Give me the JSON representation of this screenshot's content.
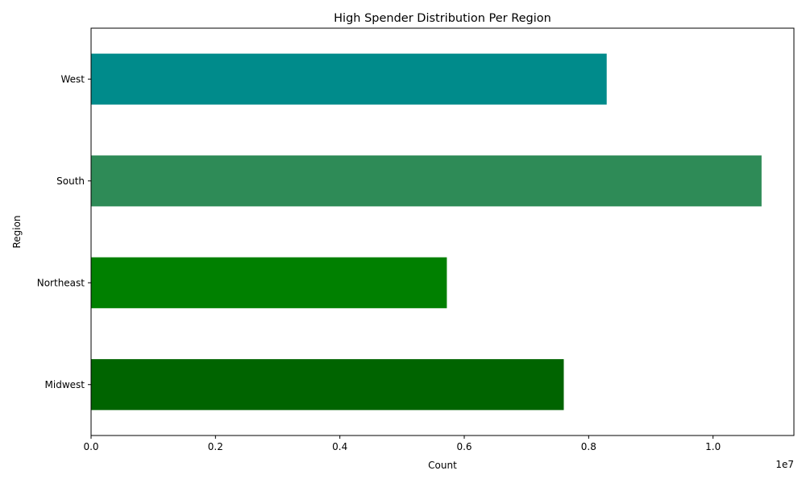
{
  "chart_data": {
    "type": "bar",
    "orientation": "horizontal",
    "title": "High Spender Distribution Per Region",
    "xlabel": "Count",
    "ylabel": "Region",
    "x_offset_label": "1e7",
    "categories": [
      "Midwest",
      "Northeast",
      "South",
      "West"
    ],
    "values": [
      7600000,
      5720000,
      10780000,
      8290000
    ],
    "colors": [
      "#006400",
      "#008000",
      "#2e8b57",
      "#008b8b"
    ],
    "xlim": [
      0,
      11300000
    ],
    "x_ticks": [
      0,
      2000000,
      4000000,
      6000000,
      8000000,
      10000000
    ],
    "x_tick_labels": [
      "0.0",
      "0.2",
      "0.4",
      "0.6",
      "0.8",
      "1.0"
    ],
    "grid": false,
    "legend": "none"
  }
}
